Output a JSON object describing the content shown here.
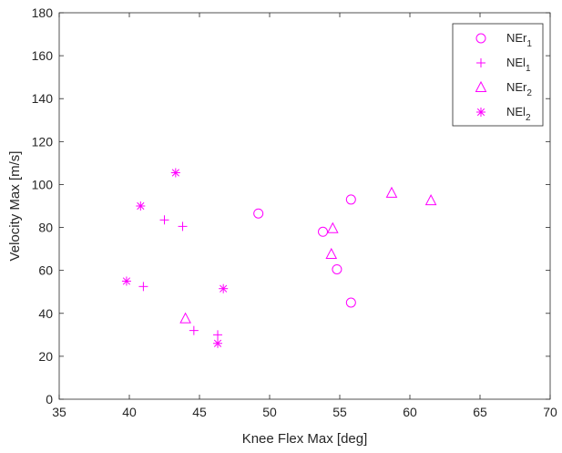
{
  "chart_data": {
    "type": "scatter",
    "title": "",
    "xlabel": "Knee Flex Max [deg]",
    "ylabel": "Velocity Max [m/s]",
    "xlim": [
      35,
      70
    ],
    "ylim": [
      0,
      180
    ],
    "xticks": [
      35,
      40,
      45,
      50,
      55,
      60,
      65,
      70
    ],
    "yticks": [
      0,
      20,
      40,
      60,
      80,
      100,
      120,
      140,
      160,
      180
    ],
    "grid": false,
    "legend_position": "top-right",
    "color": "#ff00ff",
    "series": [
      {
        "name": "NEr",
        "name_sub": "1",
        "marker": "circle",
        "x": [
          49.2,
          53.8,
          54.8,
          55.8,
          55.8
        ],
        "y": [
          86.5,
          78,
          60.5,
          93,
          45
        ]
      },
      {
        "name": "NEl",
        "name_sub": "1",
        "marker": "plus",
        "x": [
          41.0,
          42.5,
          43.8,
          44.6,
          46.3
        ],
        "y": [
          52.5,
          83.5,
          80.5,
          32,
          30
        ]
      },
      {
        "name": "NEr",
        "name_sub": "2",
        "marker": "triangle",
        "x": [
          44.0,
          54.4,
          54.5,
          58.7,
          61.5
        ],
        "y": [
          37.5,
          67.5,
          79.5,
          96,
          92.5
        ]
      },
      {
        "name": "NEl",
        "name_sub": "2",
        "marker": "asterisk",
        "x": [
          39.8,
          40.8,
          43.3,
          46.3,
          46.7
        ],
        "y": [
          55,
          90,
          105.5,
          26,
          51.5
        ]
      }
    ]
  }
}
